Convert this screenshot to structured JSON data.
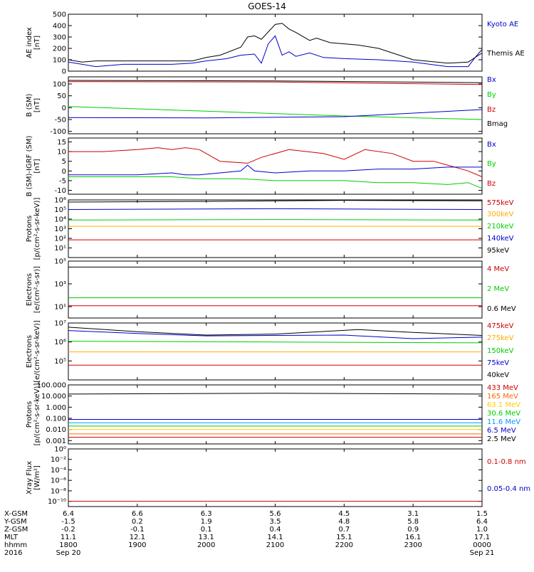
{
  "chart_data": {
    "title": "GOES-14",
    "type": "line",
    "x_axis": {
      "rows": [
        {
          "label": "X-GSM",
          "values": [
            "6.4",
            "6.6",
            "6.3",
            "5.6",
            "4.5",
            "3.1",
            "1.5"
          ]
        },
        {
          "label": "Y-GSM",
          "values": [
            "-1.5",
            "0.2",
            "1.9",
            "3.5",
            "4.8",
            "5.8",
            "6.4"
          ]
        },
        {
          "label": "Z-GSM",
          "values": [
            "-0.2",
            "-0.1",
            "0.1",
            "0.4",
            "0.7",
            "0.9",
            "1.0"
          ]
        },
        {
          "label": "MLT",
          "values": [
            "11.1",
            "12.1",
            "13.1",
            "14.1",
            "15.1",
            "16.1",
            "17.1"
          ]
        },
        {
          "label": "hhmm",
          "values": [
            "1800",
            "1900",
            "2000",
            "2100",
            "2200",
            "2300",
            "0000"
          ]
        },
        {
          "label": "2016",
          "values": [
            "Sep 20",
            "",
            "",
            "",
            "",
            "",
            "Sep 21"
          ]
        }
      ]
    },
    "panels": [
      {
        "id": "ae",
        "ylabel": [
          "AE index",
          "[nT]"
        ],
        "scale": "linear",
        "ylim": [
          0,
          500
        ],
        "ticks": [
          "0",
          "100",
          "200",
          "300",
          "400",
          "500"
        ],
        "legend": [
          {
            "name": "Kyoto AE",
            "color": "#0000cc"
          },
          {
            "name": "Themis AE",
            "color": "#000000"
          }
        ],
        "series": [
          {
            "name": "Themis AE",
            "color": "#000000",
            "x": [
              0,
              0.2,
              0.4,
              0.6,
              0.8,
              1.0,
              1.2,
              1.5,
              1.8,
              2.0,
              2.2,
              2.5,
              2.6,
              2.7,
              2.8,
              3.0,
              3.1,
              3.2,
              3.3,
              3.5,
              3.6,
              3.8,
              4.0,
              4.2,
              4.5,
              5.0,
              5.5,
              5.8,
              5.9,
              6.0
            ],
            "y": [
              100,
              80,
              90,
              90,
              90,
              90,
              90,
              90,
              90,
              120,
              140,
              210,
              300,
              310,
              280,
              410,
              420,
              370,
              340,
              270,
              290,
              250,
              240,
              230,
              200,
              100,
              70,
              80,
              120,
              190
            ]
          },
          {
            "name": "Kyoto AE",
            "color": "#0000cc",
            "x": [
              0,
              0.2,
              0.4,
              0.6,
              0.8,
              1.0,
              1.2,
              1.5,
              1.8,
              2.0,
              2.3,
              2.5,
              2.7,
              2.8,
              2.9,
              3.0,
              3.1,
              3.2,
              3.3,
              3.5,
              3.7,
              4.0,
              4.5,
              5.0,
              5.5,
              5.8,
              5.9,
              6.0
            ],
            "y": [
              80,
              60,
              40,
              50,
              60,
              60,
              60,
              60,
              70,
              90,
              110,
              140,
              150,
              70,
              240,
              310,
              140,
              170,
              130,
              160,
              120,
              110,
              100,
              80,
              40,
              40,
              120,
              160
            ]
          }
        ]
      },
      {
        "id": "bsm",
        "ylabel": [
          "B (SM)",
          "[nT]"
        ],
        "scale": "linear",
        "ylim": [
          -110,
          130
        ],
        "ticks": [
          "-100",
          "-50",
          "0",
          "50",
          "100"
        ],
        "legend": [
          {
            "name": "Bx",
            "color": "#0000cc"
          },
          {
            "name": "By",
            "color": "#00cc00"
          },
          {
            "name": "Bz",
            "color": "#cc0000"
          },
          {
            "name": "Bmag",
            "color": "#000000"
          }
        ],
        "series": [
          {
            "name": "Bmag",
            "color": "#000000",
            "x": [
              0,
              3,
              6
            ],
            "y": [
              115,
              113,
              105
            ]
          },
          {
            "name": "Bz",
            "color": "#cc0000",
            "x": [
              0,
              3,
              6
            ],
            "y": [
              110,
              108,
              98
            ]
          },
          {
            "name": "By",
            "color": "#00cc00",
            "x": [
              0,
              2,
              4,
              6
            ],
            "y": [
              5,
              -15,
              -35,
              -50
            ]
          },
          {
            "name": "Bx",
            "color": "#0000cc",
            "x": [
              0,
              2,
              4,
              6
            ],
            "y": [
              -42,
              -43,
              -38,
              -8
            ]
          }
        ]
      },
      {
        "id": "bsmigrf",
        "ylabel": [
          "B (SM)-IGRF (SM)",
          "[nT]"
        ],
        "scale": "linear",
        "ylim": [
          -12,
          17
        ],
        "ticks": [
          "-10",
          "-5",
          "0",
          "5",
          "10",
          "15"
        ],
        "legend": [
          {
            "name": "Bx",
            "color": "#0000cc"
          },
          {
            "name": "By",
            "color": "#00cc00"
          },
          {
            "name": "Bz",
            "color": "#cc0000"
          }
        ],
        "series": [
          {
            "name": "Bz",
            "color": "#cc0000",
            "x": [
              0,
              0.5,
              1.0,
              1.3,
              1.5,
              1.7,
              1.9,
              2.2,
              2.6,
              2.8,
              3.2,
              3.7,
              4.0,
              4.3,
              4.7,
              5.0,
              5.3,
              5.5,
              5.8,
              6.0
            ],
            "y": [
              10,
              10,
              11,
              12,
              11,
              12,
              11,
              5,
              4,
              7,
              11,
              9,
              6,
              11,
              9,
              5,
              5,
              3,
              0,
              -3
            ]
          },
          {
            "name": "Bx",
            "color": "#0000cc",
            "x": [
              0,
              0.5,
              1.0,
              1.5,
              1.7,
              1.9,
              2.2,
              2.5,
              2.6,
              2.7,
              3.0,
              3.5,
              4.0,
              4.5,
              5.0,
              5.5,
              6.0
            ],
            "y": [
              -2,
              -2,
              -2,
              -1,
              -2,
              -2,
              -1,
              0,
              3,
              0,
              -1,
              0,
              0,
              1,
              1,
              2,
              2
            ]
          },
          {
            "name": "By",
            "color": "#00cc00",
            "x": [
              0,
              0.5,
              1.0,
              1.5,
              1.9,
              2.5,
              3.0,
              3.5,
              4.0,
              4.5,
              5.0,
              5.5,
              5.8,
              6.0
            ],
            "y": [
              -3,
              -3,
              -3,
              -3,
              -4,
              -4,
              -5,
              -5,
              -5,
              -6,
              -6,
              -7,
              -6,
              -9
            ]
          }
        ]
      },
      {
        "id": "protons_low",
        "ylabel": [
          "Protons",
          "[p/(cm²-s-sr-keV)]"
        ],
        "scale": "log",
        "ylim": [
          1,
          1000000
        ],
        "ticks": [
          "10¹",
          "10²",
          "10³",
          "10⁴",
          "10⁵",
          "10⁶"
        ],
        "legend": [
          {
            "name": "575keV",
            "color": "#cc0000"
          },
          {
            "name": "300keV",
            "color": "#ffaa00"
          },
          {
            "name": "210keV",
            "color": "#00cc00"
          },
          {
            "name": "140keV",
            "color": "#0000cc"
          },
          {
            "name": "95keV",
            "color": "#000000"
          }
        ],
        "series": [
          {
            "name": "95keV",
            "color": "#000000",
            "x": [
              0,
              2,
              4,
              6
            ],
            "y": [
              600000,
              700000,
              900000,
              800000
            ]
          },
          {
            "name": "140keV",
            "color": "#0000cc",
            "x": [
              0,
              3,
              6
            ],
            "y": [
              100000,
              120000,
              100000
            ]
          },
          {
            "name": "210keV",
            "color": "#00cc00",
            "x": [
              0,
              3,
              6
            ],
            "y": [
              8000,
              9000,
              8000
            ]
          },
          {
            "name": "300keV",
            "color": "#ffaa00",
            "x": [
              0,
              3,
              6
            ],
            "y": [
              1800,
              1800,
              1800
            ]
          },
          {
            "name": "575keV",
            "color": "#cc0000",
            "x": [
              0,
              3,
              6
            ],
            "y": [
              70,
              70,
              70
            ]
          }
        ]
      },
      {
        "id": "electrons_high",
        "ylabel": [
          "Electrons",
          "[e/(cm²-s-sr)]"
        ],
        "scale": "log",
        "ylim": [
          1,
          100000
        ],
        "ticks": [
          "10¹",
          "10³",
          "10⁵"
        ],
        "legend": [
          {
            "name": "4 MeV",
            "color": "#cc0000"
          },
          {
            "name": "2 MeV",
            "color": "#00cc00"
          },
          {
            "name": "0.6 MeV",
            "color": "#000000"
          }
        ],
        "series": [
          {
            "name": "0.6 MeV",
            "color": "#000000",
            "x": [
              0,
              6
            ],
            "y": [
              30000,
              30000
            ]
          },
          {
            "name": "2 MeV",
            "color": "#00cc00",
            "x": [
              0,
              6
            ],
            "y": [
              60,
              60
            ]
          },
          {
            "name": "4 MeV",
            "color": "#cc0000",
            "x": [
              0,
              6
            ],
            "y": [
              12,
              12
            ]
          }
        ]
      },
      {
        "id": "electrons_low",
        "ylabel": [
          "Electrons",
          "[e/(cm²-s-sr-keV)]"
        ],
        "scale": "log",
        "ylim": [
          10000,
          10000000
        ],
        "ticks": [
          "10⁵",
          "10⁶",
          "10⁷"
        ],
        "legend": [
          {
            "name": "475keV",
            "color": "#cc0000"
          },
          {
            "name": "275keV",
            "color": "#ffaa00"
          },
          {
            "name": "150keV",
            "color": "#00cc00"
          },
          {
            "name": "75keV",
            "color": "#0000cc"
          },
          {
            "name": "40keV",
            "color": "#000000"
          }
        ],
        "series": [
          {
            "name": "40keV",
            "color": "#000000",
            "x": [
              0,
              1,
              2,
              3,
              4.2,
              5,
              6
            ],
            "y": [
              6000000,
              3500000,
              2300000,
              2600000,
              4500000,
              3200000,
              2200000
            ]
          },
          {
            "name": "75keV",
            "color": "#0000cc",
            "x": [
              0,
              1,
              2,
              3,
              4,
              5,
              6
            ],
            "y": [
              4000000,
              2800000,
              2100000,
              2200000,
              2300000,
              1500000,
              1800000
            ]
          },
          {
            "name": "150keV",
            "color": "#00cc00",
            "x": [
              0,
              3,
              6
            ],
            "y": [
              1100000,
              1000000,
              900000
            ]
          },
          {
            "name": "275keV",
            "color": "#ffaa00",
            "x": [
              0,
              3,
              6
            ],
            "y": [
              300000,
              300000,
              300000
            ]
          },
          {
            "name": "475keV",
            "color": "#cc0000",
            "x": [
              0,
              3,
              6
            ],
            "y": [
              60000,
              60000,
              60000
            ]
          }
        ]
      },
      {
        "id": "protons_high",
        "ylabel": [
          "Protons",
          "[p/(cm²-s-sr-keV)]"
        ],
        "scale": "log",
        "ylim": [
          0.0005,
          100
        ],
        "ticks": [
          "0.001",
          "0.010",
          "0.100",
          "1.000",
          "10.000",
          "100.000"
        ],
        "legend": [
          {
            "name": "433 MeV",
            "color": "#cc0000"
          },
          {
            "name": "165 MeV",
            "color": "#ff6600"
          },
          {
            "name": "63.1 MeV",
            "color": "#ffcc00"
          },
          {
            "name": "30.6 MeV",
            "color": "#00cc00"
          },
          {
            "name": "11.6 MeV",
            "color": "#0099ff"
          },
          {
            "name": "6.5 MeV",
            "color": "#0000cc"
          },
          {
            "name": "2.5 MeV",
            "color": "#000000"
          }
        ],
        "series": [
          {
            "name": "2.5 MeV",
            "color": "#000000",
            "x": [
              0,
              3,
              6
            ],
            "y": [
              15,
              18,
              15
            ]
          },
          {
            "name": "6.5 MeV",
            "color": "#0000cc",
            "x": [
              0,
              3,
              6
            ],
            "y": [
              0.08,
              0.08,
              0.08
            ]
          },
          {
            "name": "11.6 MeV",
            "color": "#0099ff",
            "x": [
              0,
              3,
              6
            ],
            "y": [
              0.04,
              0.04,
              0.04
            ]
          },
          {
            "name": "30.6 MeV",
            "color": "#00cc00",
            "x": [
              0,
              3,
              6
            ],
            "y": [
              0.02,
              0.02,
              0.02
            ]
          },
          {
            "name": "63.1 MeV",
            "color": "#ffcc00",
            "x": [
              0,
              3,
              6
            ],
            "y": [
              0.01,
              0.01,
              0.01
            ]
          },
          {
            "name": "165 MeV",
            "color": "#ff6600",
            "x": [
              0,
              3,
              6
            ],
            "y": [
              0.004,
              0.004,
              0.004
            ]
          },
          {
            "name": "433 MeV",
            "color": "#cc0000",
            "x": [
              0,
              3,
              6
            ],
            "y": [
              0.002,
              0.002,
              0.002
            ]
          }
        ]
      },
      {
        "id": "xray",
        "ylabel": [
          "Xray Flux",
          "[W/m²]"
        ],
        "scale": "log",
        "ylim": [
          1e-11,
          1
        ],
        "ticks": [
          "10⁻¹⁰",
          "10⁻⁸",
          "10⁻⁶",
          "10⁻⁴",
          "10⁻²",
          "10⁰"
        ],
        "legend": [
          {
            "name": "0.1-0.8 nm",
            "color": "#cc0000"
          },
          {
            "name": "0.05-0.4 nm",
            "color": "#0000cc"
          }
        ],
        "series": [
          {
            "name": "0.1-0.8 nm",
            "color": "#cc0000",
            "x": [
              0,
              6
            ],
            "y": [
              1e-10,
              1e-10
            ]
          }
        ]
      }
    ]
  }
}
